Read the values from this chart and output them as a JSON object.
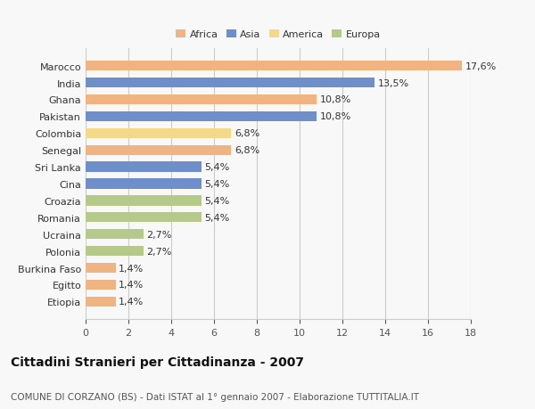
{
  "categories": [
    "Marocco",
    "India",
    "Ghana",
    "Pakistan",
    "Colombia",
    "Senegal",
    "Sri Lanka",
    "Cina",
    "Croazia",
    "Romania",
    "Ucraina",
    "Polonia",
    "Burkina Faso",
    "Egitto",
    "Etiopia"
  ],
  "values": [
    17.6,
    13.5,
    10.8,
    10.8,
    6.8,
    6.8,
    5.4,
    5.4,
    5.4,
    5.4,
    2.7,
    2.7,
    1.4,
    1.4,
    1.4
  ],
  "labels": [
    "17,6%",
    "13,5%",
    "10,8%",
    "10,8%",
    "6,8%",
    "6,8%",
    "5,4%",
    "5,4%",
    "5,4%",
    "5,4%",
    "2,7%",
    "2,7%",
    "1,4%",
    "1,4%",
    "1,4%"
  ],
  "colors": [
    "#f0b482",
    "#6e8fc9",
    "#f0b482",
    "#6e8fc9",
    "#f5d98a",
    "#f0b482",
    "#6e8fc9",
    "#6e8fc9",
    "#b5c98a",
    "#b5c98a",
    "#b5c98a",
    "#b5c98a",
    "#f0b482",
    "#f0b482",
    "#f0b482"
  ],
  "legend": {
    "Africa": "#f0b482",
    "Asia": "#6e8fc9",
    "America": "#f5d98a",
    "Europa": "#b5c98a"
  },
  "xlim": [
    0,
    18
  ],
  "xticks": [
    0,
    2,
    4,
    6,
    8,
    10,
    12,
    14,
    16,
    18
  ],
  "title": "Cittadini Stranieri per Cittadinanza - 2007",
  "subtitle": "COMUNE DI CORZANO (BS) - Dati ISTAT al 1° gennaio 2007 - Elaborazione TUTTITALIA.IT",
  "bg_color": "#f8f8f8",
  "bar_height": 0.6,
  "grid_color": "#cccccc",
  "label_fontsize": 8,
  "tick_fontsize": 8,
  "title_fontsize": 10,
  "subtitle_fontsize": 7.5
}
